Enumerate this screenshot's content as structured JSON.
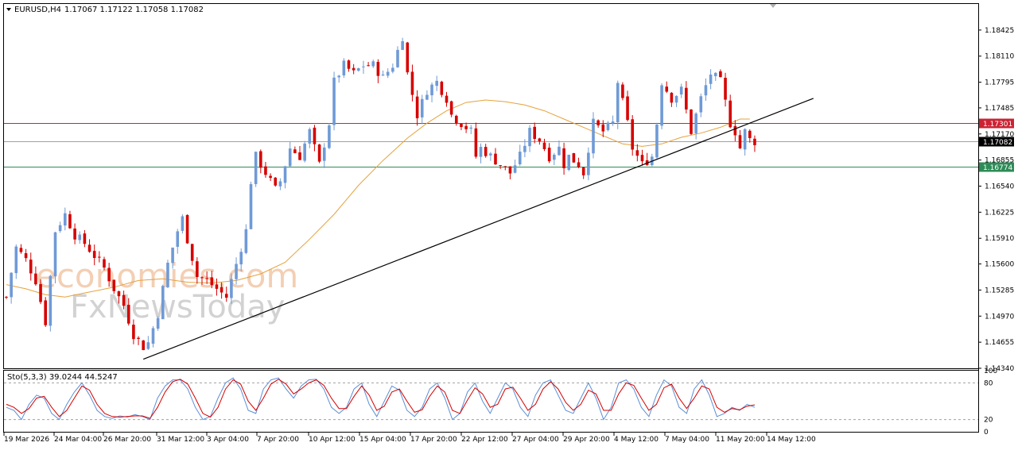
{
  "header": {
    "symbol": "EURUSD,H4",
    "values": "1.17067 1.17122 1.17058 1.17082"
  },
  "watermark": {
    "line1": "economies.com",
    "line2": "FxNewsToday"
  },
  "colors": {
    "bull": "#6f9ad6",
    "bear": "#d60000",
    "ma": "#e6a23c",
    "resistance": "#cc2233",
    "support": "#2e8b57",
    "trendline": "#000000",
    "stoch_main": "#5b8fd6",
    "stoch_signal": "#d60000"
  },
  "chart_data": [
    {
      "type": "candlestick",
      "title": "EURUSD,H4",
      "ohlc_readout": [
        1.17067,
        1.17122,
        1.17058,
        1.17082
      ],
      "ylim": [
        1.1434,
        1.1874
      ],
      "y_ticks": [
        "1.18425",
        "1.18110",
        "1.17795",
        "1.17485",
        "1.17170",
        "1.16855",
        "1.16540",
        "1.16225",
        "1.15910",
        "1.15600",
        "1.15285",
        "1.14970",
        "1.14655",
        "1.14340"
      ],
      "x_ticks": [
        "19 Mar 2026",
        "24 Mar 04:00",
        "26 Mar 20:00",
        "31 Mar 12:00",
        "3 Apr 04:00",
        "7 Apr 20:00",
        "10 Apr 12:00",
        "15 Apr 04:00",
        "17 Apr 20:00",
        "22 Apr 12:00",
        "27 Apr 04:00",
        "29 Apr 20:00",
        "4 May 12:00",
        "7 May 04:00",
        "11 May 20:00",
        "14 May 12:00"
      ],
      "price_labels": [
        {
          "value": 1.17301,
          "text": "1.17301",
          "role": "resistance"
        },
        {
          "value": 1.17082,
          "text": "1.17082",
          "role": "current"
        },
        {
          "value": 1.16774,
          "text": "1.16774",
          "role": "support"
        }
      ],
      "trendline": {
        "from": {
          "time": "30 Mar 2026",
          "price": 1.1445
        },
        "to": {
          "time": "15 May 2026",
          "price": 1.176
        }
      },
      "moving_average_approx": [
        [
          0,
          1.1535
        ],
        [
          4,
          1.153
        ],
        [
          8,
          1.1523
        ],
        [
          12,
          1.152
        ],
        [
          16,
          1.1525
        ],
        [
          22,
          1.1532
        ],
        [
          27,
          1.154
        ],
        [
          32,
          1.1542
        ],
        [
          37,
          1.1538
        ],
        [
          42,
          1.1537
        ],
        [
          47,
          1.154
        ],
        [
          52,
          1.1548
        ],
        [
          57,
          1.1562
        ],
        [
          62,
          1.159
        ],
        [
          67,
          1.162
        ],
        [
          72,
          1.1655
        ],
        [
          77,
          1.1685
        ],
        [
          82,
          1.1712
        ],
        [
          86,
          1.173
        ],
        [
          90,
          1.1745
        ],
        [
          94,
          1.1755
        ],
        [
          98,
          1.1758
        ],
        [
          102,
          1.1756
        ],
        [
          106,
          1.1752
        ],
        [
          110,
          1.1745
        ],
        [
          114,
          1.1735
        ],
        [
          118,
          1.1725
        ],
        [
          122,
          1.1715
        ],
        [
          126,
          1.1705
        ],
        [
          130,
          1.1702
        ],
        [
          134,
          1.1705
        ],
        [
          138,
          1.1713
        ],
        [
          142,
          1.1718
        ],
        [
          146,
          1.1725
        ],
        [
          150,
          1.1735
        ],
        [
          152,
          1.1735
        ]
      ],
      "closes_approx": [
        [
          0,
          1.152
        ],
        [
          2,
          1.158
        ],
        [
          4,
          1.1565
        ],
        [
          6,
          1.154
        ],
        [
          8,
          1.149
        ],
        [
          10,
          1.16
        ],
        [
          12,
          1.162
        ],
        [
          14,
          1.1595
        ],
        [
          16,
          1.1585
        ],
        [
          18,
          1.157
        ],
        [
          20,
          1.1555
        ],
        [
          22,
          1.153
        ],
        [
          24,
          1.151
        ],
        [
          26,
          1.1475
        ],
        [
          28,
          1.146
        ],
        [
          29,
          1.1465
        ],
        [
          31,
          1.15
        ],
        [
          33,
          1.156
        ],
        [
          35,
          1.16
        ],
        [
          36,
          1.1615
        ],
        [
          37,
          1.159
        ],
        [
          39,
          1.1545
        ],
        [
          41,
          1.154
        ],
        [
          43,
          1.153
        ],
        [
          45,
          1.152
        ],
        [
          47,
          1.156
        ],
        [
          49,
          1.16
        ],
        [
          50,
          1.166
        ],
        [
          51,
          1.169
        ],
        [
          53,
          1.167
        ],
        [
          55,
          1.165
        ],
        [
          56,
          1.166
        ],
        [
          58,
          1.17
        ],
        [
          60,
          1.169
        ],
        [
          62,
          1.172
        ],
        [
          64,
          1.168
        ],
        [
          66,
          1.173
        ],
        [
          67,
          1.178
        ],
        [
          69,
          1.18
        ],
        [
          71,
          1.179
        ],
        [
          73,
          1.18
        ],
        [
          75,
          1.18
        ],
        [
          77,
          1.1785
        ],
        [
          79,
          1.18
        ],
        [
          81,
          1.1835
        ],
        [
          82,
          1.179
        ],
        [
          84,
          1.174
        ],
        [
          86,
          1.177
        ],
        [
          88,
          1.178
        ],
        [
          90,
          1.176
        ],
        [
          91,
          1.174
        ],
        [
          93,
          1.173
        ],
        [
          95,
          1.172
        ],
        [
          96,
          1.169
        ],
        [
          97,
          1.17
        ],
        [
          99,
          1.169
        ],
        [
          101,
          1.168
        ],
        [
          103,
          1.167
        ],
        [
          105,
          1.169
        ],
        [
          107,
          1.172
        ],
        [
          109,
          1.171
        ],
        [
          111,
          1.169
        ],
        [
          113,
          1.17
        ],
        [
          114,
          1.168
        ],
        [
          115,
          1.169
        ],
        [
          117,
          1.168
        ],
        [
          118,
          1.167
        ],
        [
          120,
          1.173
        ],
        [
          122,
          1.172
        ],
        [
          124,
          1.173
        ],
        [
          125,
          1.178
        ],
        [
          127,
          1.173
        ],
        [
          128,
          1.17
        ],
        [
          130,
          1.168
        ],
        [
          132,
          1.169
        ],
        [
          133,
          1.173
        ],
        [
          134,
          1.178
        ],
        [
          136,
          1.176
        ],
        [
          138,
          1.177
        ],
        [
          140,
          1.172
        ],
        [
          142,
          1.176
        ],
        [
          144,
          1.179
        ],
        [
          146,
          1.178
        ],
        [
          148,
          1.173
        ],
        [
          149,
          1.172
        ],
        [
          150,
          1.17
        ],
        [
          151,
          1.172
        ],
        [
          152,
          1.171
        ],
        [
          153,
          1.1708
        ]
      ]
    },
    {
      "type": "line",
      "title": "Sto(5,3,3) 39.0244 44.5247",
      "readout": {
        "main": 39.0244,
        "signal": 44.5247
      },
      "ylim": [
        0,
        100
      ],
      "y_ticks": [
        "100",
        "80",
        "20",
        "0"
      ],
      "levels": [
        80,
        20
      ],
      "series": [
        {
          "name": "Main",
          "values": [
            40,
            35,
            20,
            45,
            60,
            55,
            30,
            20,
            45,
            65,
            80,
            60,
            35,
            25,
            22,
            26,
            24,
            28,
            25,
            20,
            55,
            75,
            85,
            85,
            70,
            40,
            20,
            25,
            55,
            80,
            88,
            70,
            35,
            30,
            70,
            85,
            88,
            70,
            55,
            75,
            85,
            86,
            70,
            40,
            30,
            40,
            70,
            80,
            45,
            25,
            50,
            75,
            68,
            35,
            25,
            40,
            70,
            80,
            55,
            20,
            30,
            65,
            80,
            50,
            30,
            55,
            80,
            70,
            40,
            25,
            60,
            80,
            85,
            60,
            35,
            30,
            55,
            80,
            55,
            20,
            40,
            80,
            85,
            70,
            40,
            25,
            60,
            85,
            75,
            40,
            30,
            70,
            85,
            60,
            25,
            30,
            40,
            35,
            45,
            40
          ]
        },
        {
          "name": "Signal",
          "values": [
            45,
            40,
            30,
            38,
            55,
            58,
            40,
            25,
            35,
            55,
            75,
            68,
            45,
            30,
            25,
            24,
            25,
            26,
            26,
            22,
            40,
            65,
            82,
            86,
            78,
            55,
            30,
            24,
            40,
            70,
            85,
            78,
            50,
            35,
            55,
            78,
            86,
            78,
            62,
            70,
            80,
            85,
            76,
            55,
            38,
            38,
            58,
            75,
            60,
            35,
            42,
            65,
            70,
            50,
            32,
            36,
            58,
            75,
            65,
            35,
            30,
            52,
            72,
            62,
            40,
            45,
            70,
            73,
            55,
            35,
            45,
            70,
            82,
            70,
            48,
            35,
            45,
            68,
            62,
            35,
            35,
            62,
            80,
            76,
            55,
            35,
            45,
            72,
            78,
            55,
            38,
            55,
            75,
            70,
            40,
            32,
            38,
            36,
            42,
            44
          ]
        }
      ]
    }
  ]
}
